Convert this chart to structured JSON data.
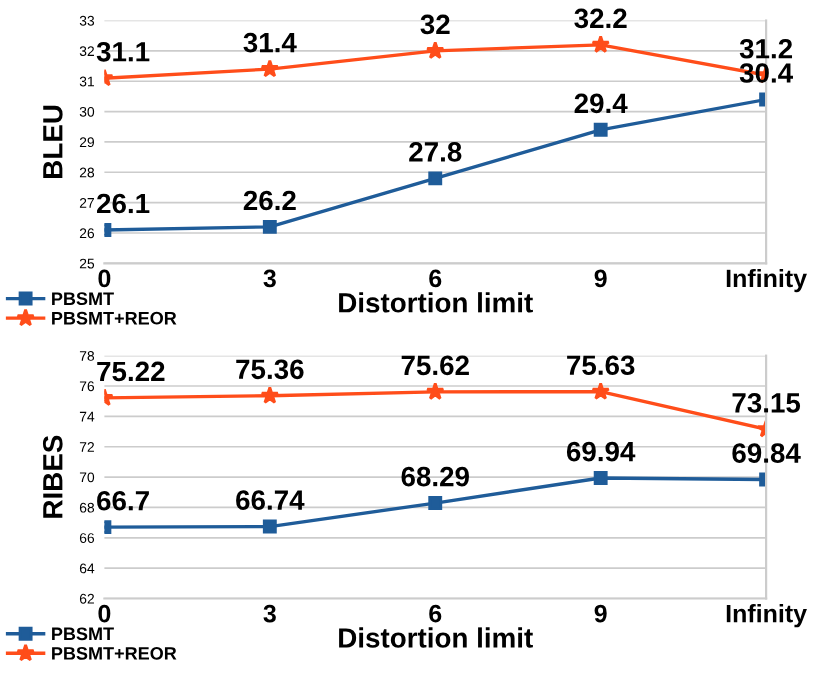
{
  "chart_data": [
    {
      "type": "line",
      "xlabel": "Distortion limit",
      "ylabel": "BLEU",
      "categories": [
        "0",
        "3",
        "6",
        "9",
        "Infinity"
      ],
      "ylim": [
        25,
        33
      ],
      "yticks": [
        25,
        26,
        27,
        28,
        29,
        30,
        31,
        32,
        33
      ],
      "grid": "y",
      "legend": "bottom left",
      "data_labels": true,
      "line_style": "solid",
      "series": [
        {
          "name": "PBSMT",
          "color": "#1f5c99",
          "marker": "square",
          "values": [
            26.1,
            26.2,
            27.8,
            29.4,
            30.4
          ]
        },
        {
          "name": "PBSMT+REOR",
          "color": "#ff4d1a",
          "marker": "star",
          "values": [
            31.1,
            31.4,
            32,
            32.2,
            31.2
          ]
        }
      ]
    },
    {
      "type": "line",
      "xlabel": "Distortion limit",
      "ylabel": "RIBES",
      "categories": [
        "0",
        "3",
        "6",
        "9",
        "Infinity"
      ],
      "ylim": [
        62,
        78
      ],
      "yticks": [
        62,
        64,
        66,
        68,
        70,
        72,
        74,
        76,
        78
      ],
      "grid": "y",
      "legend": "bottom left",
      "data_labels": true,
      "line_style": "solid",
      "series": [
        {
          "name": "PBSMT",
          "color": "#1f5c99",
          "marker": "square",
          "values": [
            66.7,
            66.74,
            68.29,
            69.94,
            69.84
          ]
        },
        {
          "name": "PBSMT+REOR",
          "color": "#ff4d1a",
          "marker": "star",
          "values": [
            75.22,
            75.36,
            75.62,
            75.63,
            73.15
          ]
        }
      ]
    }
  ]
}
